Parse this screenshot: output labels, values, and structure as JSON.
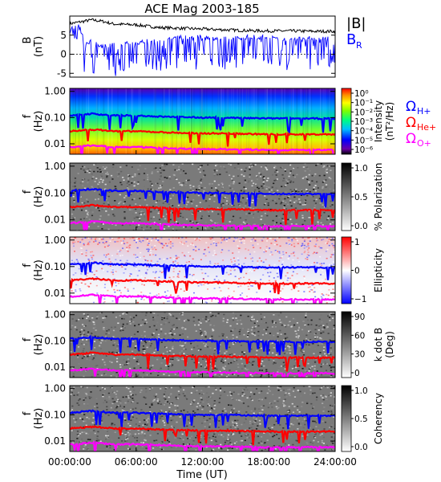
{
  "chart_data": {
    "type": "line",
    "title": "ACE Mag 2003-185",
    "xlabel": "Time (UT)",
    "x_ticks": [
      "00:00:00",
      "06:00:00",
      "12:00:00",
      "18:00:00",
      "24:00:00"
    ],
    "xlim_hours": [
      0,
      24
    ],
    "panels": [
      {
        "id": "b-field",
        "type": "line",
        "ylabel": "B",
        "yunit": "(nT)",
        "ylim": [
          -6,
          10
        ],
        "y_ticks": [
          "5",
          "0",
          "-5"
        ],
        "legend": [
          "|B|",
          "B"
        ],
        "legend_sub": [
          "",
          "R"
        ],
        "series": [
          {
            "name": "|B|",
            "color": "#000000",
            "x": [
              0,
              1,
              2,
              3,
              4,
              5,
              6,
              8,
              10,
              12,
              14,
              16,
              18,
              20,
              22,
              24
            ],
            "y": [
              8.0,
              8.5,
              9.0,
              8.6,
              7.9,
              7.8,
              7.7,
              7.0,
              6.8,
              6.6,
              6.4,
              6.2,
              6.1,
              6.1,
              6.0,
              6.0
            ]
          },
          {
            "name": "BR",
            "color": "#0000ff",
            "x": [
              0,
              1,
              2,
              3,
              4,
              5,
              6,
              8,
              10,
              12,
              14,
              16,
              18,
              20,
              22,
              24
            ],
            "y": [
              6.0,
              2.5,
              3.5,
              2.0,
              2.5,
              3.0,
              3.0,
              4.0,
              4.5,
              4.5,
              4.0,
              4.5,
              4.5,
              4.0,
              4.2,
              4.0
            ]
          }
        ]
      },
      {
        "id": "intensity",
        "type": "heatmap",
        "ylabel": "f",
        "yunit": "(Hz)",
        "y_ticks": [
          "1.00",
          "0.10",
          "0.01"
        ],
        "colorbar_label": [
          "Intensity",
          "(nT²/Hz)"
        ],
        "colorbar_ticks": [
          "10⁰",
          "10⁻¹",
          "10⁻²",
          "10⁻³",
          "10⁻⁴",
          "10⁻⁵",
          "10⁻⁶"
        ],
        "colorbar_scale": "rainbow"
      },
      {
        "id": "polarization",
        "type": "heatmap",
        "ylabel": "f",
        "yunit": "(Hz)",
        "y_ticks": [
          "1.00",
          "0.10",
          "0.01"
        ],
        "colorbar_label": [
          "% Polarization"
        ],
        "colorbar_ticks": [
          "1.0",
          "0.5",
          "0.0"
        ],
        "colorbar_scale": "gray"
      },
      {
        "id": "ellipticity",
        "type": "heatmap",
        "ylabel": "f",
        "yunit": "(Hz)",
        "y_ticks": [
          "1.00",
          "0.10",
          "0.01"
        ],
        "colorbar_label": [
          "Ellipticity"
        ],
        "colorbar_ticks": [
          "1",
          "0",
          "−1"
        ],
        "colorbar_scale": "red-white-blue"
      },
      {
        "id": "k-dot-b",
        "type": "heatmap",
        "ylabel": "f",
        "yunit": "(Hz)",
        "y_ticks": [
          "1.00",
          "0.10",
          "0.01"
        ],
        "colorbar_label": [
          "k dot B",
          "(Deg)"
        ],
        "colorbar_ticks": [
          "90",
          "60",
          "30",
          "0"
        ],
        "colorbar_scale": "gray"
      },
      {
        "id": "coherency",
        "type": "heatmap",
        "ylabel": "f",
        "yunit": "(Hz)",
        "y_ticks": [
          "1.00",
          "0.10",
          "0.01"
        ],
        "colorbar_label": [
          "Coherency"
        ],
        "colorbar_ticks": [
          "1.0",
          "0.5",
          "0.0"
        ],
        "colorbar_scale": "gray"
      }
    ],
    "gyrofrequency_lines": [
      {
        "name": "ΩH+",
        "symbol": "Ω",
        "sub": "H+",
        "color": "#0000ff",
        "x": [
          0,
          1,
          2,
          3,
          4,
          5,
          6,
          8,
          10,
          12,
          14,
          16,
          18,
          20,
          22,
          24
        ],
        "hz": [
          0.12,
          0.13,
          0.14,
          0.13,
          0.12,
          0.12,
          0.12,
          0.11,
          0.105,
          0.1,
          0.1,
          0.095,
          0.093,
          0.093,
          0.092,
          0.092
        ]
      },
      {
        "name": "ΩHe+",
        "symbol": "Ω",
        "sub": "He+",
        "color": "#ff0000",
        "x": [
          0,
          1,
          2,
          3,
          4,
          5,
          6,
          8,
          10,
          12,
          14,
          16,
          18,
          20,
          22,
          24
        ],
        "hz": [
          0.03,
          0.032,
          0.035,
          0.033,
          0.03,
          0.03,
          0.03,
          0.028,
          0.026,
          0.025,
          0.025,
          0.024,
          0.023,
          0.023,
          0.023,
          0.023
        ]
      },
      {
        "name": "ΩO+",
        "symbol": "Ω",
        "sub": "O+",
        "color": "#ff00ff",
        "x": [
          0,
          1,
          2,
          3,
          4,
          5,
          6,
          8,
          10,
          12,
          14,
          16,
          18,
          20,
          22,
          24
        ],
        "hz": [
          0.0075,
          0.008,
          0.0087,
          0.0082,
          0.0075,
          0.0075,
          0.0075,
          0.007,
          0.0065,
          0.0063,
          0.0062,
          0.006,
          0.0058,
          0.0058,
          0.0058,
          0.0058
        ]
      }
    ]
  }
}
